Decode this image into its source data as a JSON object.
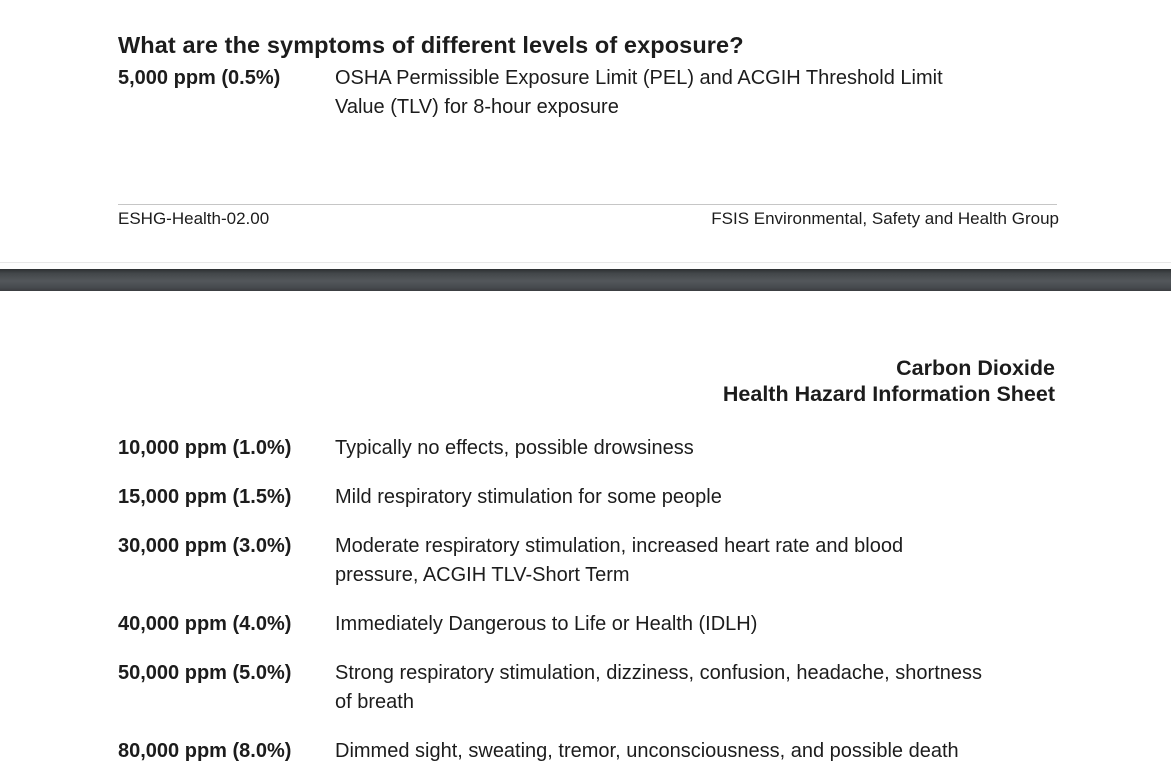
{
  "document": {
    "title": "Carbon Dioxide Health Hazard Information Sheet"
  },
  "page1": {
    "section_heading": "What are the symptoms of different levels of exposure?",
    "row": {
      "level": "5,000 ppm (0.5%)",
      "description": [
        "OSHA Permissible Exposure Limit (PEL) and ACGIH Threshold Limit",
        "Value (TLV) for 8-hour exposure"
      ]
    },
    "footer": {
      "left": "ESHG-Health-02.00",
      "right": "FSIS Environmental, Safety and Health Group"
    }
  },
  "page2": {
    "header_lines": [
      "Carbon Dioxide",
      "Health Hazard Information Sheet"
    ],
    "rows": [
      {
        "level": "10,000 ppm (1.0%)",
        "description": [
          "Typically no effects, possible drowsiness"
        ]
      },
      {
        "level": "15,000 ppm (1.5%)",
        "description": [
          "Mild respiratory stimulation for some people"
        ]
      },
      {
        "level": "30,000 ppm (3.0%)",
        "description": [
          "Moderate respiratory stimulation, increased heart rate and blood",
          "pressure, ACGIH TLV-Short Term"
        ]
      },
      {
        "level": "40,000 ppm (4.0%)",
        "description": [
          "Immediately Dangerous to Life or Health (IDLH)"
        ]
      },
      {
        "level": "50,000 ppm (5.0%)",
        "description": [
          "Strong respiratory stimulation, dizziness, confusion, headache, shortness",
          "of breath"
        ]
      },
      {
        "level": "80,000 ppm (8.0%)",
        "description": [
          "Dimmed sight, sweating, tremor, unconsciousness, and possible death"
        ]
      }
    ]
  },
  "colors": {
    "text": "#1c1c1c",
    "page_background": "#ffffff",
    "separator_dark": "#2c2f31",
    "separator_mid": "#53575b",
    "footer_rule": "#c6c6c6"
  }
}
